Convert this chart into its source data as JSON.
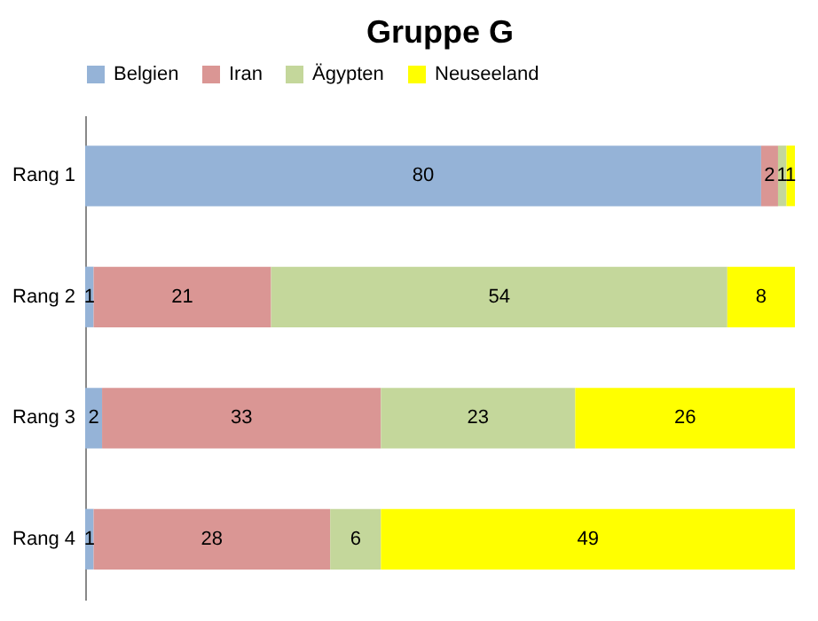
{
  "chart_data": {
    "type": "bar",
    "orientation": "horizontal",
    "stacked": true,
    "title": "Gruppe G",
    "categories": [
      "Rang 1",
      "Rang 2",
      "Rang 3",
      "Rang 4"
    ],
    "series": [
      {
        "name": "Belgien",
        "color": "#95b3d7",
        "values": [
          80,
          1,
          2,
          1
        ]
      },
      {
        "name": "Iran",
        "color": "#da9694",
        "values": [
          2,
          21,
          33,
          28
        ]
      },
      {
        "name": "Ägypten",
        "color": "#c4d79b",
        "values": [
          1,
          54,
          23,
          6
        ]
      },
      {
        "name": "Neuseeland",
        "color": "#ffff00",
        "values": [
          1,
          8,
          26,
          49
        ]
      }
    ],
    "xlim": [
      0,
      84
    ],
    "tick_labels": "y",
    "data_labels": true,
    "legend": "top"
  }
}
